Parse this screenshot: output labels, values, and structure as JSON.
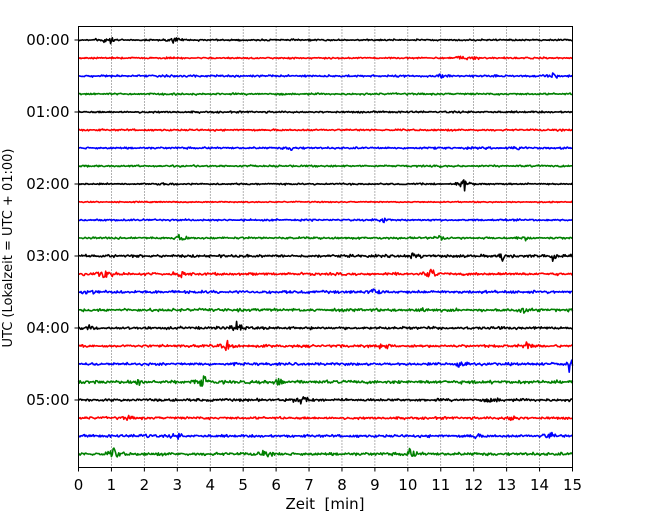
{
  "chart_data": {
    "type": "line",
    "title": "",
    "xlabel": "Zeit  [min]",
    "ylabel": "UTC (Lokalzeit = UTC + 01:00)",
    "xlim": [
      0,
      15
    ],
    "x_ticks": [
      0,
      1,
      2,
      3,
      4,
      5,
      6,
      7,
      8,
      9,
      10,
      11,
      12,
      13,
      14,
      15
    ],
    "x_tick_labels": [
      "0",
      "1",
      "2",
      "3",
      "4",
      "5",
      "6",
      "7",
      "8",
      "9",
      "10",
      "11",
      "12",
      "13",
      "14",
      "15"
    ],
    "y_tick_labels": [
      "00:00",
      "01:00",
      "02:00",
      "03:00",
      "04:00",
      "05:00"
    ],
    "grid": "vertical dotted at each minute",
    "trace_interval_min": 15,
    "trace_count": 24,
    "color_cycle": [
      "#000000",
      "#ff0000",
      "#0000ff",
      "#008000"
    ],
    "traces": [
      {
        "start": "00:00",
        "color": "#000000",
        "noise": 0.8,
        "events": [
          [
            0.7,
            4
          ],
          [
            1.0,
            3
          ],
          [
            2.9,
            3
          ]
        ]
      },
      {
        "start": "00:15",
        "color": "#ff0000",
        "noise": 0.8,
        "events": [
          [
            11.6,
            3
          ],
          [
            12.0,
            2
          ]
        ]
      },
      {
        "start": "00:30",
        "color": "#0000ff",
        "noise": 1.0,
        "events": [
          [
            11.0,
            3
          ],
          [
            14.4,
            3
          ]
        ]
      },
      {
        "start": "00:45",
        "color": "#008000",
        "noise": 0.9,
        "events": []
      },
      {
        "start": "01:00",
        "color": "#000000",
        "noise": 0.9,
        "events": []
      },
      {
        "start": "01:15",
        "color": "#ff0000",
        "noise": 0.9,
        "events": []
      },
      {
        "start": "01:30",
        "color": "#0000ff",
        "noise": 1.0,
        "events": [
          [
            6.5,
            3
          ],
          [
            13.3,
            2
          ]
        ]
      },
      {
        "start": "01:45",
        "color": "#008000",
        "noise": 0.9,
        "events": []
      },
      {
        "start": "02:00",
        "color": "#000000",
        "noise": 0.8,
        "events": [
          [
            11.7,
            7
          ],
          [
            2.7,
            2
          ]
        ]
      },
      {
        "start": "02:15",
        "color": "#ff0000",
        "noise": 0.6,
        "events": []
      },
      {
        "start": "02:30",
        "color": "#0000ff",
        "noise": 0.9,
        "events": [
          [
            9.2,
            4
          ]
        ]
      },
      {
        "start": "02:45",
        "color": "#008000",
        "noise": 1.0,
        "events": [
          [
            3.1,
            5
          ],
          [
            11.0,
            3
          ],
          [
            13.6,
            3
          ]
        ]
      },
      {
        "start": "03:00",
        "color": "#000000",
        "noise": 1.3,
        "events": [
          [
            10.2,
            5
          ],
          [
            12.9,
            6
          ],
          [
            14.4,
            6
          ]
        ]
      },
      {
        "start": "03:15",
        "color": "#ff0000",
        "noise": 1.3,
        "events": [
          [
            0.8,
            7
          ],
          [
            3.1,
            3
          ],
          [
            10.7,
            6
          ]
        ]
      },
      {
        "start": "03:30",
        "color": "#0000ff",
        "noise": 1.4,
        "events": [
          [
            0.3,
            4
          ],
          [
            8.9,
            6
          ]
        ]
      },
      {
        "start": "03:45",
        "color": "#008000",
        "noise": 1.4,
        "events": [
          [
            10.4,
            3
          ],
          [
            13.5,
            3
          ]
        ]
      },
      {
        "start": "04:00",
        "color": "#000000",
        "noise": 1.3,
        "events": [
          [
            4.8,
            7
          ],
          [
            0.3,
            3
          ]
        ]
      },
      {
        "start": "04:15",
        "color": "#ff0000",
        "noise": 1.3,
        "events": [
          [
            4.5,
            5
          ],
          [
            9.2,
            4
          ],
          [
            13.6,
            4
          ]
        ]
      },
      {
        "start": "04:30",
        "color": "#0000ff",
        "noise": 1.3,
        "events": [
          [
            11.6,
            6
          ],
          [
            14.9,
            7
          ]
        ]
      },
      {
        "start": "04:45",
        "color": "#008000",
        "noise": 1.6,
        "events": [
          [
            3.8,
            7
          ],
          [
            6.1,
            4
          ],
          [
            1.8,
            3
          ]
        ]
      },
      {
        "start": "05:00",
        "color": "#000000",
        "noise": 1.3,
        "events": [
          [
            6.8,
            8
          ],
          [
            12.6,
            3
          ]
        ]
      },
      {
        "start": "05:15",
        "color": "#ff0000",
        "noise": 1.2,
        "events": [
          [
            13.2,
            5
          ],
          [
            1.5,
            2
          ]
        ]
      },
      {
        "start": "05:30",
        "color": "#0000ff",
        "noise": 1.3,
        "events": [
          [
            14.3,
            5
          ],
          [
            2.0,
            3
          ],
          [
            3.0,
            3
          ],
          [
            12.0,
            3
          ]
        ]
      },
      {
        "start": "05:45",
        "color": "#008000",
        "noise": 1.5,
        "events": [
          [
            1.1,
            7
          ],
          [
            10.1,
            6
          ],
          [
            5.6,
            3
          ]
        ]
      }
    ]
  }
}
